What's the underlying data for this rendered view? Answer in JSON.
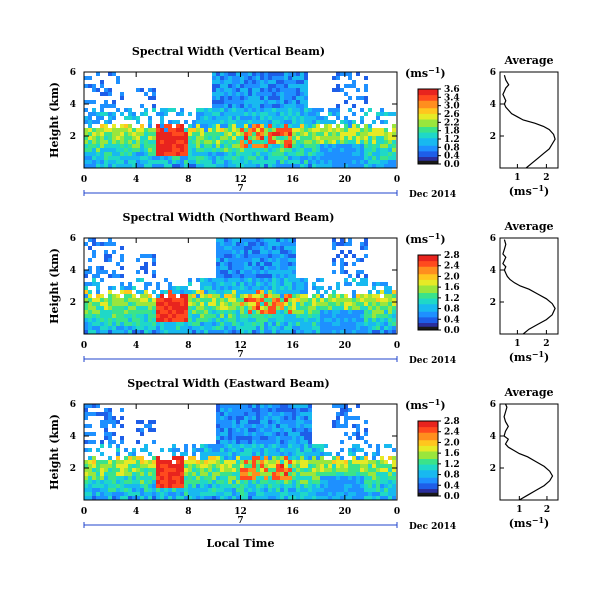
{
  "colorbar_colors": [
    "#1a1a1a",
    "#2b2f9e",
    "#1e5ee8",
    "#1e90ff",
    "#18b9f0",
    "#1fd8c8",
    "#3be38a",
    "#9ae63c",
    "#e6ea26",
    "#ffc61e",
    "#ff8e1e",
    "#ff4a1e",
    "#e8241e"
  ],
  "chart_data": [
    {
      "type": "heatmap",
      "title": "Spectral Width (Vertical Beam)",
      "ylabel": "Height (km)",
      "x_ticks": [
        "0",
        "4",
        "8",
        "12",
        "16",
        "20",
        "0"
      ],
      "y_ticks": [
        "6",
        "4",
        "2"
      ],
      "date_label": "7",
      "month_label": "Dec 2014",
      "colorbar": {
        "unit": "(ms",
        "unit_sup": "−1",
        "unit_close": ")",
        "ticks": [
          "3.6",
          "3.4",
          "3.0",
          "2.6",
          "2.2",
          "1.8",
          "1.2",
          "0.8",
          "0.4",
          "0.0"
        ],
        "range": [
          0,
          3.6
        ]
      },
      "xlim": [
        0,
        24
      ],
      "ylim": [
        0,
        6
      ],
      "fields": {
        "lower_layer_top_km": 2.6,
        "upper_layer_km": [
          3.8,
          6.0
        ],
        "upper_window_h": [
          9.8,
          17.2
        ],
        "high_width_h": [
          5.6,
          8.0
        ],
        "high_width_value": 3.3
      },
      "profile": {
        "title": "Average",
        "xlabel_prefix": "(ms",
        "xlabel_sup": "−1",
        "xlabel_suffix": ")",
        "x_ticks": [
          "1",
          "2"
        ],
        "y_ticks": [
          "6",
          "4",
          "2"
        ],
        "xlim": [
          0.4,
          2.4
        ],
        "ylim": [
          0,
          6
        ],
        "x": [
          1.3,
          1.5,
          1.7,
          1.9,
          2.1,
          2.2,
          2.3,
          2.25,
          2.1,
          1.9,
          1.6,
          1.2,
          1.0,
          0.8,
          0.7,
          0.6,
          0.55,
          0.6,
          0.55,
          0.5,
          0.55,
          0.6,
          0.7,
          0.6,
          0.55
        ],
        "y": [
          0.0,
          0.3,
          0.6,
          0.9,
          1.2,
          1.5,
          1.8,
          2.1,
          2.4,
          2.6,
          2.8,
          3.0,
          3.2,
          3.4,
          3.6,
          3.8,
          4.0,
          4.2,
          4.4,
          4.6,
          4.8,
          5.0,
          5.2,
          5.5,
          5.8
        ]
      }
    },
    {
      "type": "heatmap",
      "title": "Spectral Width (Northward Beam)",
      "ylabel": "Height (km)",
      "x_ticks": [
        "0",
        "4",
        "8",
        "12",
        "16",
        "20",
        "0"
      ],
      "y_ticks": [
        "6",
        "4",
        "2"
      ],
      "date_label": "7",
      "month_label": "Dec 2014",
      "colorbar": {
        "unit": "(ms",
        "unit_sup": "−1",
        "unit_close": ")",
        "ticks": [
          "2.8",
          "2.4",
          "2.0",
          "1.6",
          "1.2",
          "0.8",
          "0.4",
          "0.0"
        ],
        "range": [
          0,
          2.8
        ]
      },
      "xlim": [
        0,
        24
      ],
      "ylim": [
        0,
        6
      ],
      "fields": {
        "lower_layer_top_km": 2.5,
        "upper_layer_km": [
          3.5,
          6.0
        ],
        "upper_window_h": [
          10.0,
          16.3
        ],
        "high_width_h": [
          5.4,
          8.0
        ],
        "high_width_value": 2.7
      },
      "profile": {
        "title": "Average",
        "xlabel_prefix": "(ms",
        "xlabel_sup": "−1",
        "xlabel_suffix": ")",
        "x_ticks": [
          "1",
          "2"
        ],
        "y_ticks": [
          "6",
          "4",
          "2"
        ],
        "xlim": [
          0.4,
          2.4
        ],
        "ylim": [
          0,
          6
        ],
        "x": [
          1.2,
          1.4,
          1.7,
          2.0,
          2.2,
          2.3,
          2.2,
          2.0,
          1.7,
          1.4,
          1.1,
          0.9,
          0.75,
          0.65,
          0.6,
          0.55,
          0.6,
          0.5,
          0.55,
          0.6,
          0.5,
          0.55,
          0.6,
          0.55
        ],
        "y": [
          0.0,
          0.3,
          0.6,
          0.9,
          1.2,
          1.6,
          1.9,
          2.2,
          2.5,
          2.8,
          3.0,
          3.2,
          3.4,
          3.6,
          3.8,
          4.0,
          4.2,
          4.4,
          4.6,
          4.8,
          5.0,
          5.3,
          5.6,
          5.9
        ]
      }
    },
    {
      "type": "heatmap",
      "title": "Spectral Width (Eastward Beam)",
      "ylabel": "Height (km)",
      "xlabel": "Local Time",
      "x_ticks": [
        "0",
        "4",
        "8",
        "12",
        "16",
        "20",
        "0"
      ],
      "y_ticks": [
        "6",
        "4",
        "2"
      ],
      "date_label": "7",
      "month_label": "Dec 2014",
      "colorbar": {
        "unit": "(ms",
        "unit_sup": "−1",
        "unit_close": ")",
        "ticks": [
          "2.8",
          "2.4",
          "2.0",
          "1.6",
          "1.2",
          "0.8",
          "0.4",
          "0.0"
        ],
        "range": [
          0,
          2.8
        ]
      },
      "xlim": [
        0,
        24
      ],
      "ylim": [
        0,
        6
      ],
      "fields": {
        "lower_layer_top_km": 2.6,
        "upper_layer_km": [
          3.4,
          6.0
        ],
        "upper_window_h": [
          10.0,
          17.5
        ],
        "high_width_h": [
          5.4,
          7.8
        ],
        "high_width_value": 2.7
      },
      "profile": {
        "title": "Average",
        "xlabel_prefix": "(ms",
        "xlabel_sup": "−1",
        "xlabel_suffix": ")",
        "x_ticks": [
          "1",
          "2"
        ],
        "y_ticks": [
          "6",
          "4",
          "2"
        ],
        "xlim": [
          0.3,
          2.4
        ],
        "ylim": [
          0,
          6
        ],
        "x": [
          1.0,
          1.3,
          1.6,
          1.9,
          2.1,
          2.2,
          2.1,
          1.9,
          1.6,
          1.3,
          1.0,
          0.8,
          0.6,
          0.5,
          0.6,
          0.45,
          0.5,
          0.6,
          0.5,
          0.45,
          0.5,
          0.55,
          0.5
        ],
        "y": [
          0.0,
          0.3,
          0.6,
          0.9,
          1.2,
          1.5,
          1.8,
          2.1,
          2.4,
          2.7,
          2.9,
          3.1,
          3.3,
          3.5,
          3.8,
          4.0,
          4.3,
          4.6,
          4.9,
          5.2,
          5.5,
          5.8,
          6.0
        ]
      }
    }
  ]
}
